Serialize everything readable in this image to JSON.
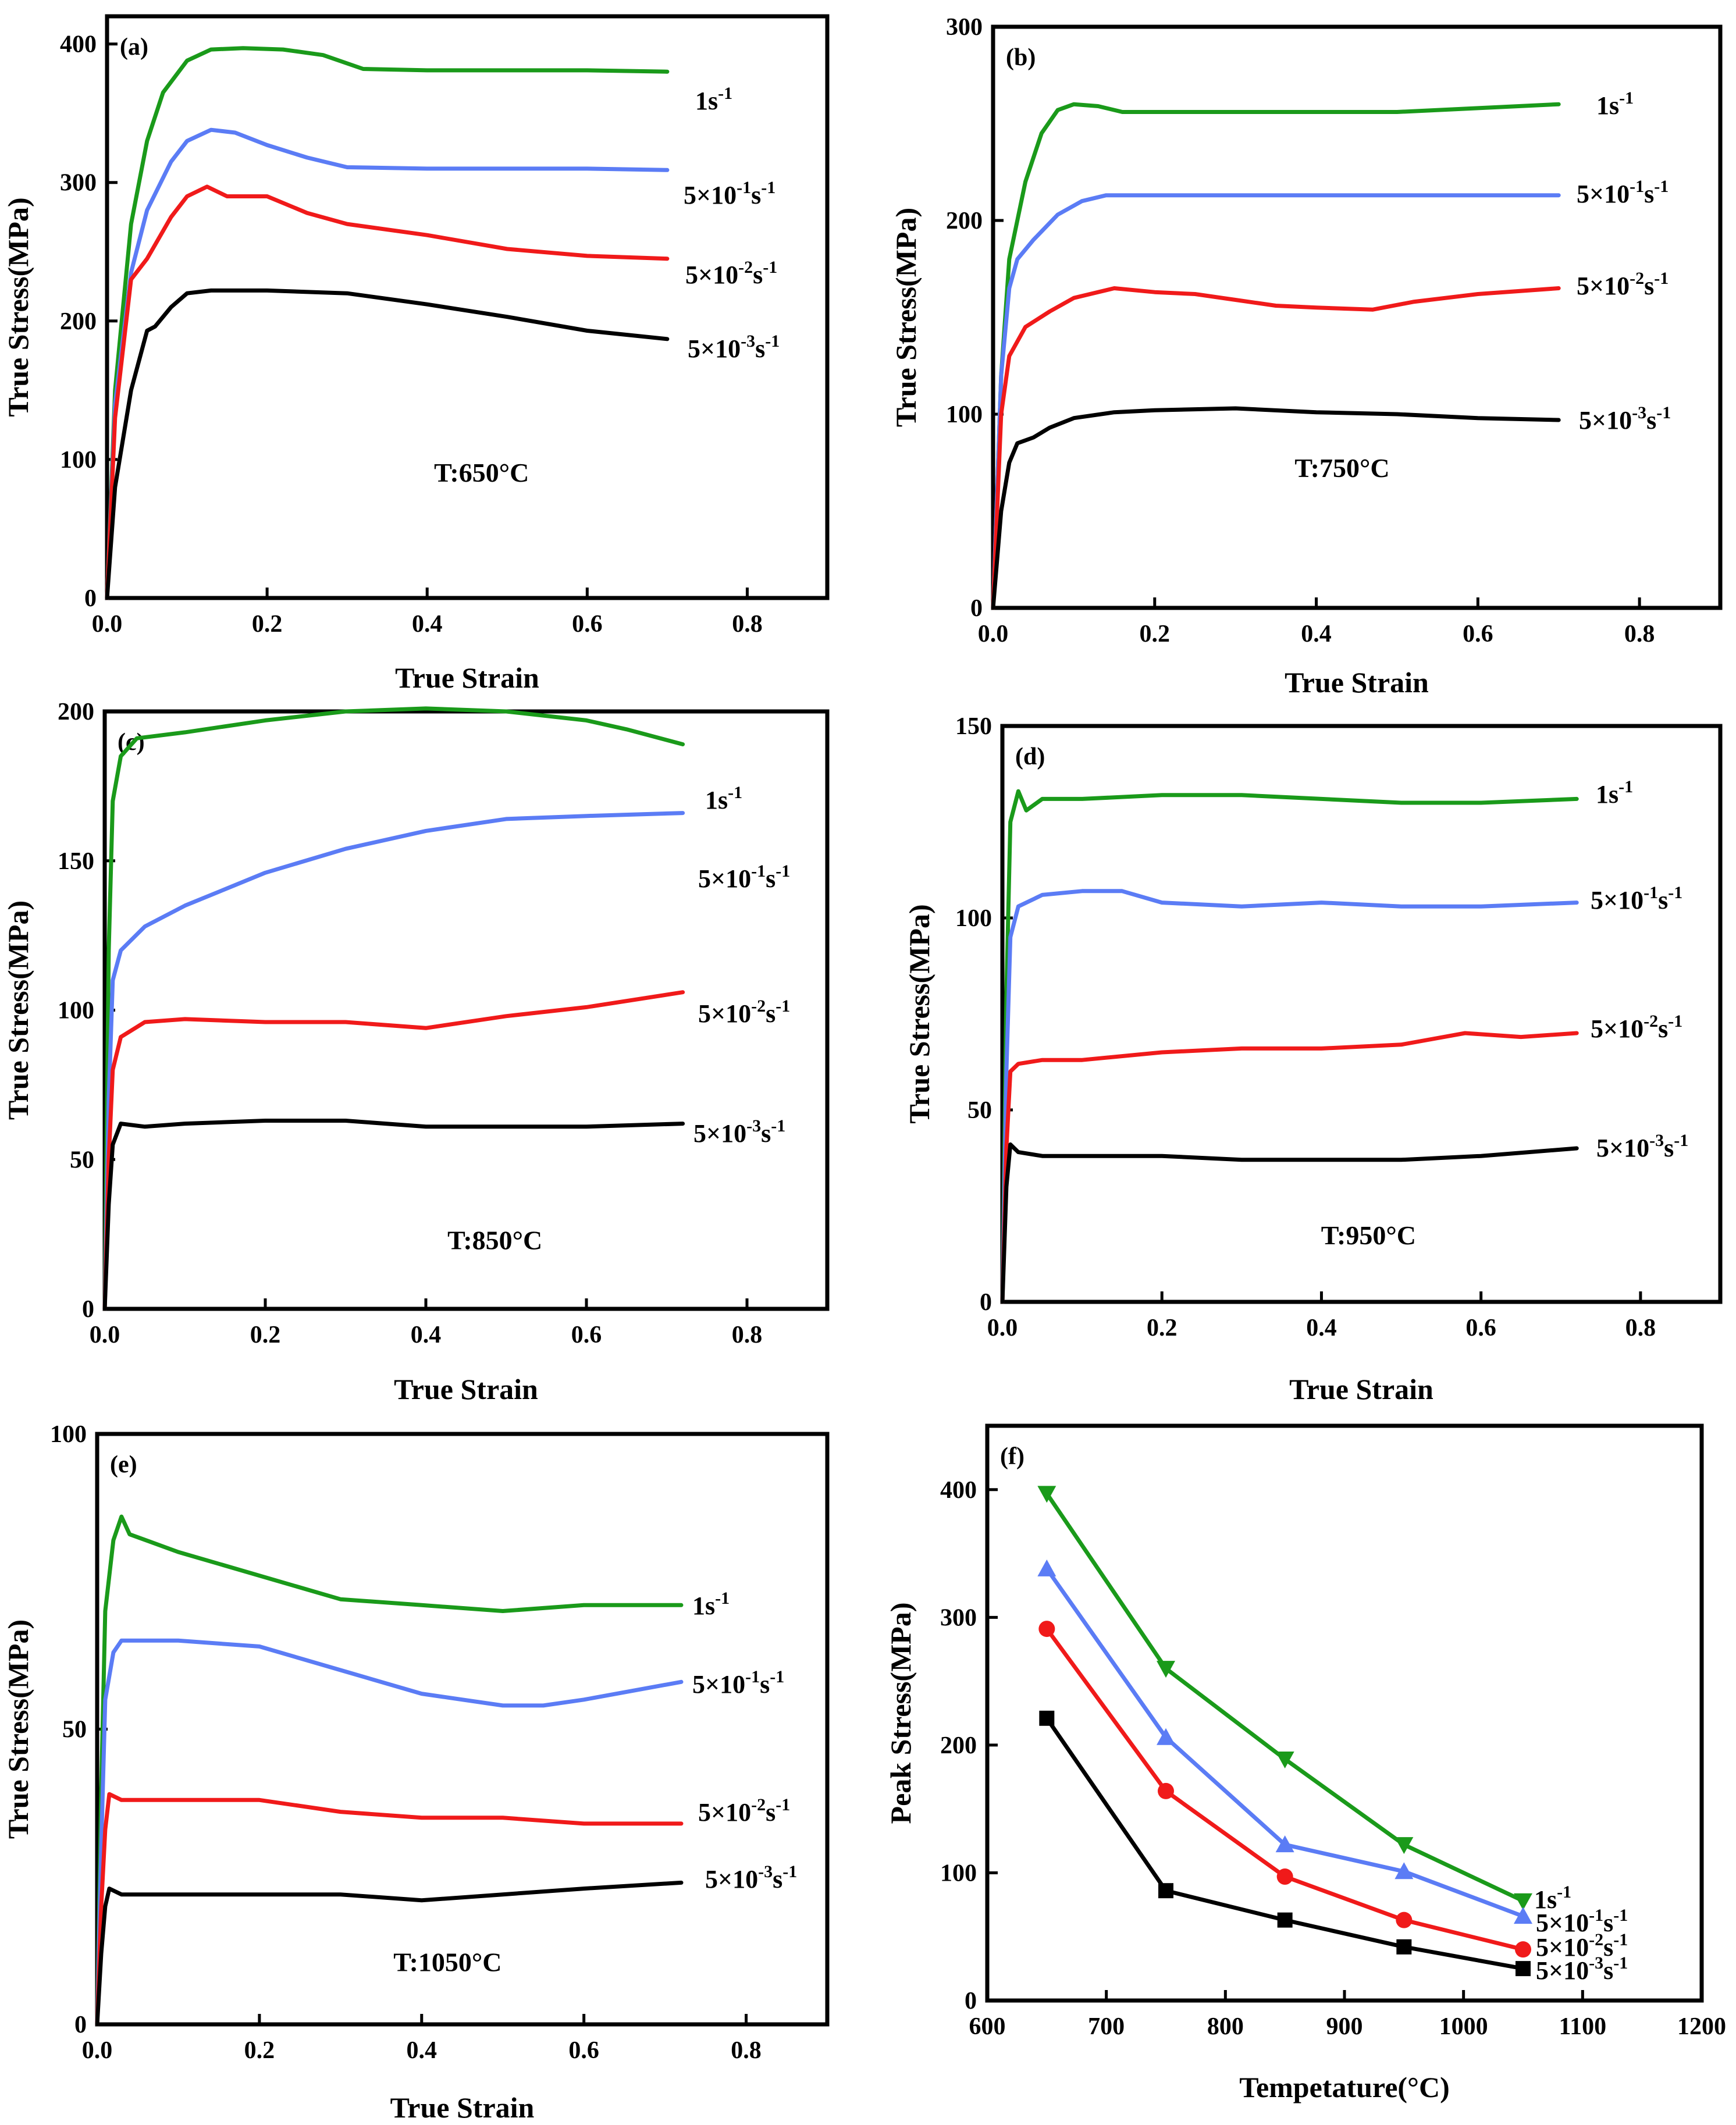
{
  "chart_data": [
    {
      "type": "line",
      "panel": "(a)",
      "temperature_label": "T:650°C",
      "xlabel": "True Strain",
      "ylabel": "True Stress(MPa)",
      "xlim": [
        0,
        0.9
      ],
      "ylim": [
        0,
        420
      ],
      "xticks": [
        "0.0",
        "0.2",
        "0.4",
        "0.6",
        "0.8"
      ],
      "yticks": [
        "0",
        "100",
        "200",
        "300",
        "400"
      ],
      "series": [
        {
          "name": "1s-1",
          "label_base": "1s",
          "label_exp": "-1",
          "label_parts": [
            "1s",
            "-1"
          ],
          "color": "#1a9a1a",
          "x": [
            0,
            0.01,
            0.03,
            0.05,
            0.07,
            0.1,
            0.13,
            0.17,
            0.22,
            0.27,
            0.32,
            0.4,
            0.5,
            0.6,
            0.7
          ],
          "y": [
            0,
            150,
            270,
            330,
            365,
            388,
            396,
            397,
            396,
            392,
            382,
            381,
            381,
            381,
            380
          ]
        },
        {
          "name": "5×10-1s-1",
          "label_base": "5×10",
          "label_exp": "-1",
          "label_parts": [
            "5×10",
            "-1",
            "s",
            "-1"
          ],
          "color": "#5b7cf5",
          "x": [
            0,
            0.01,
            0.03,
            0.05,
            0.08,
            0.1,
            0.13,
            0.16,
            0.2,
            0.25,
            0.3,
            0.4,
            0.5,
            0.6,
            0.7
          ],
          "y": [
            0,
            140,
            235,
            280,
            315,
            330,
            338,
            336,
            327,
            318,
            311,
            310,
            310,
            310,
            309
          ]
        },
        {
          "name": "5×10-2s-1",
          "label_base": "5×10",
          "label_exp": "-2",
          "label_parts": [
            "5×10",
            "-2",
            "s",
            "-1"
          ],
          "color": "#f01a1a",
          "x": [
            0,
            0.01,
            0.03,
            0.05,
            0.08,
            0.1,
            0.125,
            0.15,
            0.2,
            0.25,
            0.3,
            0.4,
            0.5,
            0.6,
            0.7
          ],
          "y": [
            0,
            130,
            230,
            245,
            275,
            290,
            297,
            290,
            290,
            278,
            270,
            262,
            252,
            247,
            245
          ]
        },
        {
          "name": "5×10-3s-1",
          "label_base": "5×10",
          "label_exp": "-3",
          "label_parts": [
            "5×10",
            "-3",
            "s",
            "-1"
          ],
          "color": "#000000",
          "x": [
            0,
            0.01,
            0.03,
            0.05,
            0.06,
            0.08,
            0.1,
            0.13,
            0.2,
            0.3,
            0.4,
            0.5,
            0.6,
            0.7
          ],
          "y": [
            0,
            80,
            150,
            193,
            196,
            210,
            220,
            222,
            222,
            220,
            212,
            203,
            193,
            187
          ]
        }
      ]
    },
    {
      "type": "line",
      "panel": "(b)",
      "temperature_label": "T:750°C",
      "xlabel": "True Strain",
      "ylabel": "True Stress(MPa)",
      "xlim": [
        0,
        0.9
      ],
      "ylim": [
        0,
        300
      ],
      "xticks": [
        "0.0",
        "0.2",
        "0.4",
        "0.6",
        "0.8"
      ],
      "yticks": [
        "0",
        "100",
        "200",
        "300"
      ],
      "series": [
        {
          "name": "1s-1",
          "label_base": "1s",
          "label_exp": "-1",
          "label_parts": [
            "1s",
            "-1"
          ],
          "color": "#1a9a1a",
          "x": [
            0,
            0.01,
            0.02,
            0.04,
            0.06,
            0.08,
            0.1,
            0.13,
            0.16,
            0.25,
            0.4,
            0.5,
            0.6,
            0.7
          ],
          "y": [
            0,
            120,
            180,
            220,
            245,
            257,
            260,
            259,
            256,
            256,
            256,
            256,
            258,
            260
          ]
        },
        {
          "name": "5×10-1s-1",
          "label_base": "5×10",
          "label_exp": "-1",
          "label_parts": [
            "5×10",
            "-1",
            "s",
            "-1"
          ],
          "color": "#5b7cf5",
          "x": [
            0,
            0.01,
            0.02,
            0.03,
            0.05,
            0.08,
            0.11,
            0.14,
            0.2,
            0.4,
            0.6,
            0.7
          ],
          "y": [
            0,
            120,
            165,
            180,
            190,
            203,
            210,
            213,
            213,
            213,
            213,
            213
          ]
        },
        {
          "name": "5×10-2s-1",
          "label_base": "5×10",
          "label_exp": "-2",
          "label_parts": [
            "5×10",
            "-2",
            "s",
            "-1"
          ],
          "color": "#f01a1a",
          "x": [
            0,
            0.01,
            0.02,
            0.04,
            0.07,
            0.1,
            0.15,
            0.2,
            0.25,
            0.3,
            0.35,
            0.4,
            0.47,
            0.52,
            0.6,
            0.7
          ],
          "y": [
            0,
            100,
            130,
            145,
            153,
            160,
            165,
            163,
            162,
            159,
            156,
            155,
            154,
            158,
            162,
            165
          ]
        },
        {
          "name": "5×10-3s-1",
          "label_base": "5×10",
          "label_exp": "-3",
          "label_parts": [
            "5×10",
            "-3",
            "s",
            "-1"
          ],
          "color": "#000000",
          "x": [
            0,
            0.01,
            0.02,
            0.03,
            0.05,
            0.07,
            0.1,
            0.15,
            0.2,
            0.3,
            0.4,
            0.5,
            0.6,
            0.7
          ],
          "y": [
            0,
            50,
            75,
            85,
            88,
            93,
            98,
            101,
            102,
            103,
            101,
            100,
            98,
            97
          ]
        }
      ]
    },
    {
      "type": "line",
      "panel": "(c)",
      "temperature_label": "T:850°C",
      "xlabel": "True Strain",
      "ylabel": "True Stress(MPa)",
      "xlim": [
        0,
        0.9
      ],
      "ylim": [
        0,
        200
      ],
      "xticks": [
        "0.0",
        "0.2",
        "0.4",
        "0.6",
        "0.8"
      ],
      "yticks": [
        "0",
        "50",
        "100",
        "150",
        "200"
      ],
      "series": [
        {
          "name": "1s-1",
          "label_base": "1s",
          "label_exp": "-1",
          "label_parts": [
            "1s",
            "-1"
          ],
          "color": "#1a9a1a",
          "x": [
            0,
            0.005,
            0.01,
            0.02,
            0.04,
            0.1,
            0.2,
            0.3,
            0.4,
            0.5,
            0.6,
            0.65,
            0.72
          ],
          "y": [
            0,
            120,
            170,
            185,
            191,
            193,
            197,
            200,
            201,
            200,
            197,
            194,
            189
          ]
        },
        {
          "name": "5×10-1s-1",
          "label_base": "5×10",
          "label_exp": "-1",
          "label_parts": [
            "5×10",
            "-1",
            "s",
            "-1"
          ],
          "color": "#5b7cf5",
          "x": [
            0,
            0.005,
            0.01,
            0.02,
            0.05,
            0.1,
            0.2,
            0.3,
            0.4,
            0.5,
            0.6,
            0.72
          ],
          "y": [
            0,
            70,
            110,
            120,
            128,
            135,
            146,
            154,
            160,
            164,
            165,
            166
          ]
        },
        {
          "name": "5×10-2s-1",
          "label_base": "5×10",
          "label_exp": "-2",
          "label_parts": [
            "5×10",
            "-2",
            "s",
            "-1"
          ],
          "color": "#f01a1a",
          "x": [
            0,
            0.005,
            0.01,
            0.02,
            0.05,
            0.1,
            0.2,
            0.3,
            0.4,
            0.5,
            0.6,
            0.72
          ],
          "y": [
            0,
            50,
            80,
            91,
            96,
            97,
            96,
            96,
            94,
            98,
            101,
            106
          ]
        },
        {
          "name": "5×10-3s-1",
          "label_base": "5×10",
          "label_exp": "-3",
          "label_parts": [
            "5×10",
            "-3",
            "s",
            "-1"
          ],
          "color": "#000000",
          "x": [
            0,
            0.005,
            0.01,
            0.02,
            0.05,
            0.1,
            0.2,
            0.3,
            0.4,
            0.5,
            0.6,
            0.72
          ],
          "y": [
            0,
            35,
            55,
            62,
            61,
            62,
            63,
            63,
            61,
            61,
            61,
            62
          ]
        }
      ]
    },
    {
      "type": "line",
      "panel": "(d)",
      "temperature_label": "T:950°C",
      "xlabel": "True Strain",
      "ylabel": "True Stress(MPa)",
      "xlim": [
        0,
        0.9
      ],
      "ylim": [
        0,
        150
      ],
      "xticks": [
        "0.0",
        "0.2",
        "0.4",
        "0.6",
        "0.8"
      ],
      "yticks": [
        "0",
        "50",
        "100",
        "150"
      ],
      "series": [
        {
          "name": "1s-1",
          "label_base": "1s",
          "label_exp": "-1",
          "label_parts": [
            "1s",
            "-1"
          ],
          "color": "#1a9a1a",
          "x": [
            0,
            0.005,
            0.01,
            0.02,
            0.03,
            0.05,
            0.1,
            0.2,
            0.3,
            0.4,
            0.5,
            0.6,
            0.72
          ],
          "y": [
            0,
            80,
            125,
            133,
            128,
            131,
            131,
            132,
            132,
            131,
            130,
            130,
            131
          ]
        },
        {
          "name": "5×10-1s-1",
          "label_base": "5×10",
          "label_exp": "-1",
          "label_parts": [
            "5×10",
            "-1",
            "s",
            "-1"
          ],
          "color": "#5b7cf5",
          "x": [
            0,
            0.005,
            0.01,
            0.02,
            0.05,
            0.1,
            0.15,
            0.2,
            0.3,
            0.4,
            0.5,
            0.6,
            0.72
          ],
          "y": [
            0,
            60,
            95,
            103,
            106,
            107,
            107,
            104,
            103,
            104,
            103,
            103,
            104
          ]
        },
        {
          "name": "5×10-2s-1",
          "label_base": "5×10",
          "label_exp": "-2",
          "label_parts": [
            "5×10",
            "-2",
            "s",
            "-1"
          ],
          "color": "#f01a1a",
          "x": [
            0,
            0.005,
            0.01,
            0.02,
            0.05,
            0.1,
            0.2,
            0.3,
            0.4,
            0.5,
            0.58,
            0.65,
            0.72
          ],
          "y": [
            0,
            40,
            60,
            62,
            63,
            63,
            65,
            66,
            66,
            67,
            70,
            69,
            70
          ]
        },
        {
          "name": "5×10-3s-1",
          "label_base": "5×10",
          "label_exp": "-3",
          "label_parts": [
            "5×10",
            "-3",
            "s",
            "-1"
          ],
          "color": "#000000",
          "x": [
            0,
            0.005,
            0.01,
            0.02,
            0.05,
            0.1,
            0.2,
            0.3,
            0.4,
            0.5,
            0.6,
            0.72
          ],
          "y": [
            0,
            30,
            41,
            39,
            38,
            38,
            38,
            37,
            37,
            37,
            38,
            40
          ]
        }
      ]
    },
    {
      "type": "line",
      "panel": "(e)",
      "temperature_label": "T:1050°C",
      "xlabel": "True Strain",
      "ylabel": "True Stress(MPa)",
      "xlim": [
        0,
        0.9
      ],
      "ylim": [
        0,
        100
      ],
      "xticks": [
        "0.0",
        "0.2",
        "0.4",
        "0.6",
        "0.8"
      ],
      "yticks": [
        "0",
        "50",
        "100"
      ],
      "series": [
        {
          "name": "1s-1",
          "label_base": "1s",
          "label_exp": "-1",
          "label_parts": [
            "1s",
            "-1"
          ],
          "color": "#1a9a1a",
          "x": [
            0,
            0.005,
            0.01,
            0.02,
            0.03,
            0.04,
            0.06,
            0.1,
            0.15,
            0.2,
            0.3,
            0.4,
            0.5,
            0.6,
            0.72
          ],
          "y": [
            0,
            40,
            70,
            82,
            86,
            83,
            82,
            80,
            78,
            76,
            72,
            71,
            70,
            71,
            71
          ]
        },
        {
          "name": "5×10-1s-1",
          "label_base": "5×10",
          "label_exp": "-1",
          "label_parts": [
            "5×10",
            "-1",
            "s",
            "-1"
          ],
          "color": "#5b7cf5",
          "x": [
            0,
            0.005,
            0.01,
            0.02,
            0.03,
            0.05,
            0.1,
            0.2,
            0.3,
            0.4,
            0.5,
            0.55,
            0.6,
            0.72
          ],
          "y": [
            0,
            30,
            55,
            63,
            65,
            65,
            65,
            64,
            60,
            56,
            54,
            54,
            55,
            58
          ]
        },
        {
          "name": "5×10-2s-1",
          "label_base": "5×10",
          "label_exp": "-2",
          "label_parts": [
            "5×10",
            "-2",
            "s",
            "-1"
          ],
          "color": "#f01a1a",
          "x": [
            0,
            0.005,
            0.01,
            0.015,
            0.03,
            0.1,
            0.2,
            0.3,
            0.4,
            0.5,
            0.6,
            0.72
          ],
          "y": [
            0,
            20,
            33,
            39,
            38,
            38,
            38,
            36,
            35,
            35,
            34,
            34
          ]
        },
        {
          "name": "5×10-3s-1",
          "label_base": "5×10",
          "label_exp": "-3",
          "label_parts": [
            "5×10",
            "-3",
            "s",
            "-1"
          ],
          "color": "#000000",
          "x": [
            0,
            0.005,
            0.01,
            0.015,
            0.03,
            0.1,
            0.2,
            0.3,
            0.4,
            0.5,
            0.6,
            0.72
          ],
          "y": [
            0,
            12,
            20,
            23,
            22,
            22,
            22,
            22,
            21,
            22,
            23,
            24
          ]
        }
      ]
    },
    {
      "type": "line",
      "panel": "(f)",
      "xlabel": "Tempetature(°C)",
      "ylabel": "Peak Stress(MPa)",
      "xlim": [
        600,
        1200
      ],
      "ylim": [
        0,
        450
      ],
      "xticks": [
        "600",
        "700",
        "800",
        "900",
        "1000",
        "1100",
        "1200"
      ],
      "yticks": [
        "0",
        "100",
        "200",
        "300",
        "400"
      ],
      "x": [
        650,
        750,
        850,
        950,
        1050
      ],
      "series": [
        {
          "name": "1s-1",
          "label_base": "1s",
          "label_exp": "-1",
          "label_parts": [
            "1s",
            "-1"
          ],
          "color": "#1a9a1a",
          "marker": "triangle-down",
          "values": [
            397,
            260,
            189,
            122,
            78
          ]
        },
        {
          "name": "5×10-1s-1",
          "label_base": "5×10",
          "label_exp": "-1",
          "label_parts": [
            "5×10",
            "-1",
            "s",
            "-1"
          ],
          "color": "#5b7cf5",
          "marker": "triangle-up",
          "values": [
            338,
            206,
            122,
            101,
            66
          ]
        },
        {
          "name": "5×10-2s-1",
          "label_base": "5×10",
          "label_exp": "-2",
          "label_parts": [
            "5×10",
            "-2",
            "s",
            "-1"
          ],
          "color": "#f01a1a",
          "marker": "circle",
          "values": [
            291,
            164,
            97,
            63,
            40
          ]
        },
        {
          "name": "5×10-3s-1",
          "label_base": "5×10",
          "label_exp": "-3",
          "label_parts": [
            "5×10",
            "-3",
            "s",
            "-1"
          ],
          "color": "#000000",
          "marker": "square",
          "values": [
            221,
            86,
            63,
            42,
            25
          ]
        }
      ]
    }
  ]
}
